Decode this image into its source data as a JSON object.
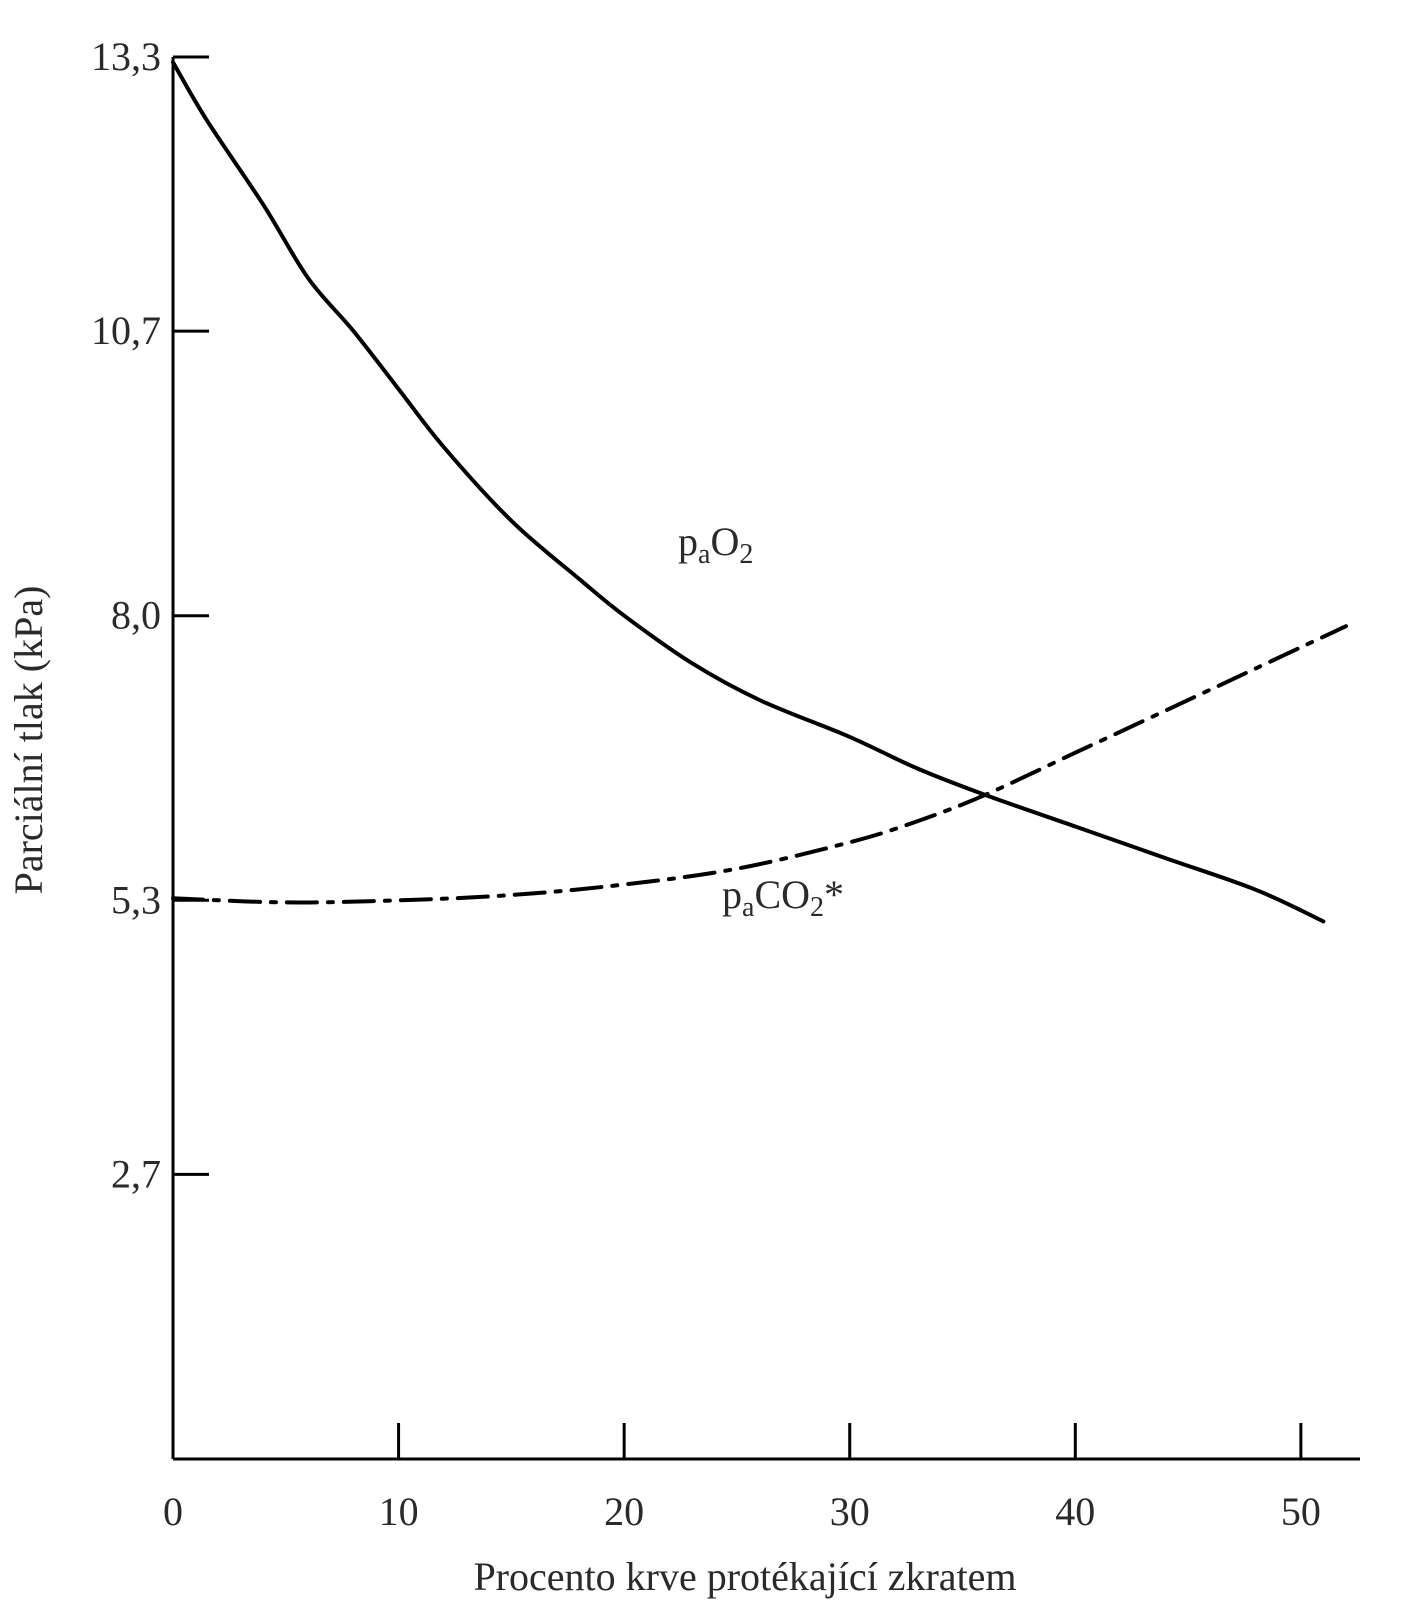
{
  "chart_data": {
    "type": "line",
    "title": "",
    "xlabel": "Procento krve protékající zkratem",
    "ylabel": "Parciální tlak (kPa)",
    "xlim": [
      0,
      52
    ],
    "ylim": [
      0,
      13.3
    ],
    "x_ticks": [
      0,
      10,
      20,
      30,
      40,
      50
    ],
    "x_tick_labels": [
      "0",
      "10",
      "20",
      "30",
      "40",
      "50"
    ],
    "y_ticks": [
      2.7,
      5.3,
      8.0,
      10.7,
      13.3
    ],
    "y_tick_labels": [
      "2,7",
      "5,3",
      "8,0",
      "10,7",
      "13,3"
    ],
    "grid": false,
    "legend": "none",
    "series": [
      {
        "name": "paO2",
        "label_main": "p",
        "label_sub": "a",
        "label_main2": "O",
        "label_sub2": "2",
        "label_suffix": "",
        "style": "solid",
        "color": "#000000",
        "x": [
          0,
          1.5,
          4,
          6,
          8,
          10,
          12,
          15,
          18,
          20,
          23,
          26,
          30,
          33,
          36,
          40,
          44,
          48,
          51
        ],
        "y": [
          13.25,
          12.7,
          11.9,
          11.2,
          10.7,
          10.15,
          9.6,
          8.9,
          8.35,
          8.0,
          7.55,
          7.2,
          6.85,
          6.55,
          6.3,
          6.0,
          5.7,
          5.4,
          5.1
        ]
      },
      {
        "name": "paCO2*",
        "label_main": "p",
        "label_sub": "a",
        "label_main2": "CO",
        "label_sub2": "2",
        "label_suffix": "*",
        "style": "dashdot",
        "color": "#000000",
        "x": [
          0,
          5,
          10,
          15,
          20,
          25,
          30,
          33,
          36,
          40,
          44,
          48,
          52
        ],
        "y": [
          5.32,
          5.28,
          5.3,
          5.35,
          5.45,
          5.6,
          5.85,
          6.05,
          6.3,
          6.7,
          7.1,
          7.5,
          7.9
        ]
      }
    ]
  }
}
